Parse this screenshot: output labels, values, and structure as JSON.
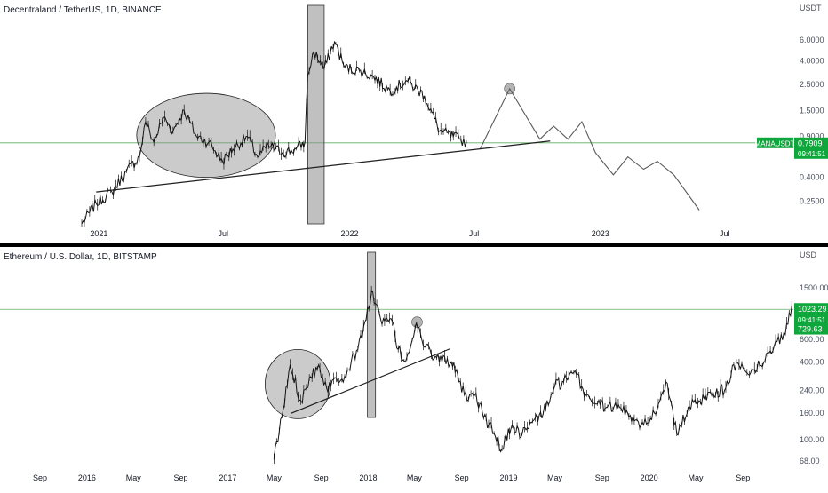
{
  "colors": {
    "background": "#ffffff",
    "axis_text": "#4a4f5c",
    "price_line": "#000000",
    "candles": "#141414",
    "annotation_fill": "#8c8c8c",
    "trendline": "#1e1e1e",
    "projection": "#5a5a5a",
    "horizontal_level": "#43a047",
    "price_tag": "#0fa73b",
    "divider": "#000000"
  },
  "chart_data": [
    {
      "type": "line",
      "title": "Decentraland / TetherUS, 1D, BINANCE",
      "currency": "USDT",
      "scale": "log",
      "ylim": [
        0.16,
        9.0
      ],
      "y_ticks": [
        "6.0000",
        "4.0000",
        "2.5000",
        "1.5000",
        "0.9000",
        "0.4000",
        "0.2500"
      ],
      "x_ticks": [
        "2021",
        "Jul",
        "2022",
        "Jul",
        "2023",
        "Jul"
      ],
      "x_tick_dates": [
        "2021-01-01",
        "2021-07-01",
        "2022-01-01",
        "2022-07-01",
        "2023-01-01",
        "2023-07-01"
      ],
      "xlim": [
        "2020-08-10",
        "2023-10-09"
      ],
      "series": [
        {
          "x": [
            "2020-12-07",
            "2020-12-28",
            "2021-01-20",
            "2021-02-10",
            "2021-03-01",
            "2021-03-10",
            "2021-03-22",
            "2021-04-05",
            "2021-04-19",
            "2021-05-05",
            "2021-05-23",
            "2021-06-10",
            "2021-06-30",
            "2021-07-15",
            "2021-08-05",
            "2021-08-20",
            "2021-09-05",
            "2021-09-25",
            "2021-10-15",
            "2021-10-28",
            "2021-11-01",
            "2021-11-10",
            "2021-11-25",
            "2021-12-10",
            "2021-12-25",
            "2022-01-15",
            "2022-02-05",
            "2022-03-01",
            "2022-03-25",
            "2022-04-20",
            "2022-05-12",
            "2022-06-10",
            "2022-06-20"
          ],
          "values": [
            0.16,
            0.24,
            0.3,
            0.45,
            0.6,
            1.2,
            0.8,
            1.3,
            1.0,
            1.5,
            0.9,
            0.8,
            0.55,
            0.7,
            0.9,
            0.6,
            0.75,
            0.65,
            0.7,
            0.8,
            3.0,
            4.8,
            3.4,
            5.8,
            3.5,
            3.3,
            2.9,
            2.2,
            2.7,
            2.0,
            1.0,
            0.85,
            0.8
          ]
        },
        {
          "x": [
            "2022-07-10",
            "2022-08-22",
            "2022-10-05",
            "2022-10-25",
            "2022-11-15",
            "2022-12-05",
            "2022-12-25",
            "2023-01-20",
            "2023-02-10",
            "2023-03-05",
            "2023-03-25",
            "2023-04-18",
            "2023-05-25"
          ],
          "values": [
            0.7,
            2.3,
            0.85,
            1.1,
            0.85,
            1.2,
            0.65,
            0.42,
            0.6,
            0.47,
            0.55,
            0.42,
            0.21
          ]
        }
      ],
      "reference_line": {
        "value": 0.7909,
        "label": "MANAUSDT",
        "value_label": "0.7909",
        "countdown": "09:41:51"
      },
      "trendline": {
        "x": [
          "2020-12-28",
          "2022-10-20"
        ],
        "values": [
          0.3,
          0.82
        ]
      },
      "ellipse_annotation": {
        "x_range": [
          "2021-02-25",
          "2021-09-15"
        ],
        "y_range": [
          0.4,
          2.1
        ]
      },
      "event_bar": {
        "x_range": [
          "2021-11-01",
          "2021-11-25"
        ]
      },
      "circle_marker": {
        "x": "2022-08-22",
        "y": 2.3
      }
    },
    {
      "type": "line",
      "title": "Ethereum / U.S. Dollar, 1D, BITSTAMP",
      "currency": "USD",
      "scale": "log",
      "ylim": [
        60,
        2200
      ],
      "y_ticks": [
        "1500.00",
        "600.00",
        "400.00",
        "240.00",
        "160.00",
        "100.00",
        "68.00"
      ],
      "x_ticks": [
        "Sep",
        "2016",
        "May",
        "Sep",
        "2017",
        "May",
        "Sep",
        "2018",
        "May",
        "Sep",
        "2019",
        "May",
        "Sep",
        "2020",
        "May",
        "Sep"
      ],
      "x_tick_dates": [
        "2015-09-01",
        "2016-01-01",
        "2016-05-01",
        "2016-09-01",
        "2017-01-01",
        "2017-05-01",
        "2017-09-01",
        "2018-01-01",
        "2018-05-01",
        "2018-09-01",
        "2019-01-01",
        "2019-05-01",
        "2019-09-01",
        "2020-01-01",
        "2020-05-01",
        "2020-09-01"
      ],
      "xlim": [
        "2015-05-20",
        "2021-01-10"
      ],
      "series": [
        {
          "x": [
            "2017-05-01",
            "2017-05-25",
            "2017-06-12",
            "2017-07-10",
            "2017-08-01",
            "2017-08-25",
            "2017-09-15",
            "2017-10-10",
            "2017-11-01",
            "2017-12-05",
            "2017-12-20",
            "2018-01-13",
            "2018-02-06",
            "2018-03-01",
            "2018-03-20",
            "2018-04-08",
            "2018-05-06",
            "2018-05-28",
            "2018-06-28",
            "2018-08-05",
            "2018-08-25",
            "2018-09-15",
            "2018-10-05",
            "2018-11-10",
            "2018-12-15",
            "2019-01-10",
            "2019-02-05",
            "2019-03-01",
            "2019-04-01",
            "2019-05-01",
            "2019-06-26",
            "2019-07-20",
            "2019-08-20",
            "2019-09-15",
            "2019-10-20",
            "2019-11-20",
            "2019-12-18",
            "2020-01-15",
            "2020-02-14",
            "2020-03-13",
            "2020-04-15",
            "2020-05-10",
            "2020-06-15",
            "2020-07-15",
            "2020-08-15",
            "2020-09-05",
            "2020-10-01",
            "2020-10-25",
            "2020-11-25",
            "2020-12-20",
            "2021-01-06"
          ],
          "values": [
            70,
            170,
            380,
            200,
            300,
            380,
            250,
            300,
            310,
            500,
            750,
            1400,
            780,
            870,
            500,
            400,
            800,
            520,
            430,
            400,
            280,
            200,
            220,
            130,
            85,
            130,
            110,
            135,
            160,
            260,
            320,
            220,
            190,
            180,
            175,
            150,
            130,
            160,
            280,
            110,
            180,
            200,
            235,
            240,
            400,
            350,
            350,
            400,
            580,
            650,
            1100
          ]
        }
      ],
      "reference_line": {
        "value": 1023.29,
        "value_label": "1023.29",
        "countdown": "09:41:51",
        "last_value_label": "729.63",
        "last_value": 729.63
      },
      "trendline": {
        "x": [
          "2017-06-15",
          "2018-08-01"
        ],
        "values": [
          160,
          505
        ]
      },
      "ellipse_annotation": {
        "x_range": [
          "2017-04-08",
          "2017-09-25"
        ],
        "y_range": [
          145,
          500
        ]
      },
      "event_bar": {
        "x_range": [
          "2017-12-30",
          "2018-01-20"
        ]
      },
      "circle_marker": {
        "x": "2018-05-08",
        "y": 815
      }
    }
  ]
}
